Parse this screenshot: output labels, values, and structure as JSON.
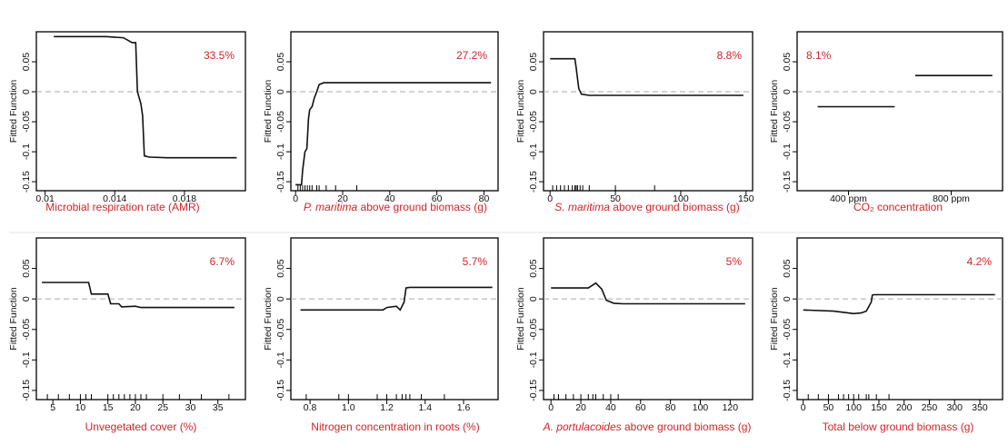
{
  "y_axis_label": "Fitted Function",
  "y_ticks": [
    0.05,
    0,
    -0.05,
    -0.1,
    -0.15
  ],
  "y_tick_labels": [
    "0.05",
    "0",
    "-0.05",
    "-0.1",
    "-0.15"
  ],
  "ylim": [
    -0.165,
    0.1
  ],
  "chart_data": [
    {
      "type": "line",
      "xlabel": "Microbial respiration rate (AMR)",
      "xlabel_italic": "",
      "importance": "33.5%",
      "importance_position": "top-right",
      "xlim": [
        0.0095,
        0.0215
      ],
      "x_ticks": [
        0.01,
        0.014,
        0.018
      ],
      "x_tick_labels": [
        "0.01",
        "0.014",
        "0.018"
      ],
      "segments": [
        [
          [
            0.0105,
            0.092
          ],
          [
            0.0135,
            0.092
          ],
          [
            0.0145,
            0.09
          ],
          [
            0.015,
            0.082
          ],
          [
            0.0152,
            0.082
          ],
          [
            0.0153,
            0.0
          ],
          [
            0.0155,
            -0.02
          ],
          [
            0.0156,
            -0.04
          ],
          [
            0.0157,
            -0.107
          ],
          [
            0.016,
            -0.109
          ],
          [
            0.017,
            -0.11
          ],
          [
            0.021,
            -0.11
          ]
        ]
      ],
      "rug": []
    },
    {
      "type": "line",
      "xlabel": " above ground biomass (g)",
      "xlabel_italic": "P. maritima",
      "importance": "27.2%",
      "importance_position": "top-right",
      "xlim": [
        -2,
        86
      ],
      "x_ticks": [
        0,
        20,
        40,
        60,
        80
      ],
      "x_tick_labels": [
        "0",
        "20",
        "40",
        "60",
        "80"
      ],
      "segments": [
        [
          [
            0,
            -0.155
          ],
          [
            2.5,
            -0.155
          ],
          [
            3,
            -0.13
          ],
          [
            4,
            -0.1
          ],
          [
            4.8,
            -0.095
          ],
          [
            5.5,
            -0.045
          ],
          [
            6,
            -0.03
          ],
          [
            7,
            -0.025
          ],
          [
            8,
            -0.01
          ],
          [
            9,
            0.0
          ],
          [
            10,
            0.012
          ],
          [
            12,
            0.015
          ],
          [
            83,
            0.015
          ]
        ]
      ],
      "rug": [
        1,
        2,
        3,
        4,
        5,
        6,
        7,
        9,
        10,
        13,
        17,
        26
      ]
    },
    {
      "type": "line",
      "xlabel": " above ground biomass (g)",
      "xlabel_italic": "S. maritima",
      "importance": "8.8%",
      "importance_position": "top-right",
      "xlim": [
        -5,
        155
      ],
      "x_ticks": [
        0,
        50,
        100,
        150
      ],
      "x_tick_labels": [
        "0",
        "50",
        "100",
        "150"
      ],
      "segments": [
        [
          [
            0,
            0.055
          ],
          [
            19,
            0.055
          ],
          [
            20,
            0.04
          ],
          [
            22,
            0.005
          ],
          [
            24,
            -0.004
          ],
          [
            30,
            -0.006
          ],
          [
            148,
            -0.006
          ]
        ]
      ],
      "rug": [
        2,
        5,
        8,
        11,
        14,
        17,
        19,
        20,
        21,
        23,
        25,
        30,
        50,
        80
      ]
    },
    {
      "type": "line",
      "xlabel": "CO₂ concentration",
      "xlabel_italic": "",
      "importance": "8.1%",
      "importance_position": "top-left",
      "xlim": [
        0,
        4
      ],
      "x_ticks": [
        1,
        3
      ],
      "x_tick_labels": [
        "400 ppm",
        "800 ppm"
      ],
      "segments": [
        [
          [
            0.4,
            -0.025
          ],
          [
            1.9,
            -0.025
          ]
        ],
        [
          [
            2.3,
            0.027
          ],
          [
            3.8,
            0.027
          ]
        ]
      ],
      "rug": []
    },
    {
      "type": "line",
      "xlabel": "Unvegetated cover (%)",
      "xlabel_italic": "",
      "importance": "6.7%",
      "importance_position": "top-right",
      "xlim": [
        2,
        40
      ],
      "x_ticks": [
        5,
        10,
        15,
        20,
        25,
        30,
        35
      ],
      "x_tick_labels": [
        "5",
        "10",
        "15",
        "20",
        "25",
        "30",
        "35"
      ],
      "segments": [
        [
          [
            3,
            0.027
          ],
          [
            11.5,
            0.027
          ],
          [
            12,
            0.008
          ],
          [
            15,
            0.008
          ],
          [
            15.5,
            -0.008
          ],
          [
            17,
            -0.008
          ],
          [
            17.5,
            -0.013
          ],
          [
            20,
            -0.012
          ],
          [
            21,
            -0.014
          ],
          [
            38,
            -0.014
          ]
        ]
      ],
      "rug": [
        4,
        6,
        8,
        10,
        11,
        12,
        15,
        16,
        17,
        18,
        19,
        20,
        21,
        22,
        25,
        28,
        32,
        37
      ]
    },
    {
      "type": "line",
      "xlabel": "Nitrogen concentration in roots (%)",
      "xlabel_italic": "",
      "importance": "5.7%",
      "importance_position": "top-right",
      "xlim": [
        0.7,
        1.78
      ],
      "x_ticks": [
        0.8,
        1.0,
        1.2,
        1.4,
        1.6
      ],
      "x_tick_labels": [
        "0.8",
        "1.0",
        "1.2",
        "1.4",
        "1.6"
      ],
      "segments": [
        [
          [
            0.75,
            -0.018
          ],
          [
            1.18,
            -0.018
          ],
          [
            1.2,
            -0.014
          ],
          [
            1.25,
            -0.012
          ],
          [
            1.27,
            -0.018
          ],
          [
            1.29,
            -0.005
          ],
          [
            1.3,
            0.018
          ],
          [
            1.32,
            0.019
          ],
          [
            1.75,
            0.019
          ]
        ]
      ],
      "rug": [
        0.78,
        0.95,
        1.0,
        1.15,
        1.2,
        1.25,
        1.28,
        1.3,
        1.32,
        1.38,
        1.5
      ]
    },
    {
      "type": "line",
      "xlabel": " above ground biomass (g)",
      "xlabel_italic": "A. portulacoides",
      "importance": "5%",
      "importance_position": "top-right",
      "xlim": [
        -5,
        135
      ],
      "x_ticks": [
        0,
        20,
        40,
        60,
        80,
        100,
        120
      ],
      "x_tick_labels": [
        "0",
        "20",
        "40",
        "60",
        "80",
        "100",
        "120"
      ],
      "segments": [
        [
          [
            0,
            0.018
          ],
          [
            25,
            0.018
          ],
          [
            30,
            0.026
          ],
          [
            34,
            0.016
          ],
          [
            37,
            -0.002
          ],
          [
            42,
            -0.007
          ],
          [
            48,
            -0.008
          ],
          [
            130,
            -0.008
          ]
        ]
      ],
      "rug": [
        2,
        5,
        10,
        15,
        20,
        25,
        28,
        30,
        35,
        40,
        45
      ]
    },
    {
      "type": "line",
      "xlabel": "Total below ground biomass (g)",
      "xlabel_italic": "",
      "importance": "4.2%",
      "importance_position": "top-right",
      "xlim": [
        -12,
        395
      ],
      "x_ticks": [
        0,
        50,
        100,
        150,
        200,
        250,
        300,
        350
      ],
      "x_tick_labels": [
        "0",
        "50",
        "100",
        "150",
        "200",
        "250",
        "300",
        "350"
      ],
      "segments": [
        [
          [
            0,
            -0.018
          ],
          [
            60,
            -0.02
          ],
          [
            80,
            -0.022
          ],
          [
            100,
            -0.024
          ],
          [
            115,
            -0.023
          ],
          [
            125,
            -0.02
          ],
          [
            135,
            -0.005
          ],
          [
            137,
            0.006
          ],
          [
            140,
            0.007
          ],
          [
            380,
            0.007
          ]
        ]
      ],
      "rug": [
        10,
        30,
        50,
        70,
        80,
        90,
        100,
        110,
        125,
        130,
        145,
        170
      ]
    }
  ]
}
